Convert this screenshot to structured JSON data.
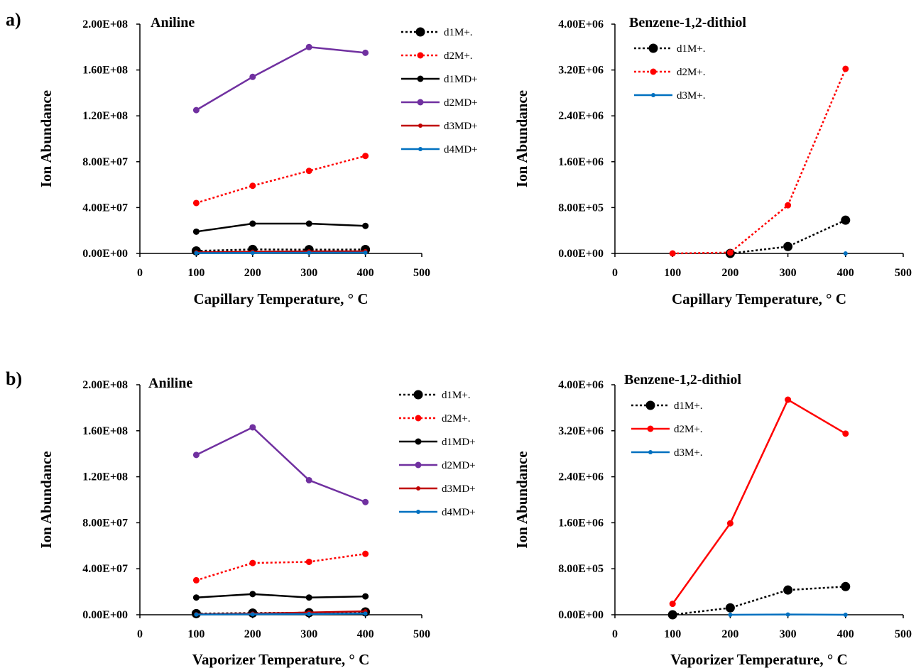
{
  "panel_labels": [
    "a)",
    "b)"
  ],
  "chart_data": [
    {
      "type": "line",
      "panel": "a)",
      "title": "Aniline",
      "xlabel": "Capillary Temperature, ° C",
      "ylabel": "Ion Abundance",
      "xlim": [
        0,
        500
      ],
      "xticks": [
        "0",
        "100",
        "200",
        "300",
        "400",
        "500"
      ],
      "ylim": [
        0,
        200000000
      ],
      "yticks": [
        "0.00E+00",
        "4.00E+07",
        "8.00E+07",
        "1.20E+08",
        "1.60E+08",
        "2.00E+08"
      ],
      "grid": false,
      "legend": "right",
      "x": [
        100,
        200,
        300,
        400
      ],
      "series": [
        {
          "name": "d1M+.",
          "values": [
            2200000,
            3500000,
            3300000,
            3400000
          ],
          "color": "#000000",
          "dashed": true,
          "marker": "large"
        },
        {
          "name": "d2M+.",
          "values": [
            44000000,
            59000000,
            72000000,
            85000000
          ],
          "color": "#ff0000",
          "dashed": true,
          "marker": "medium"
        },
        {
          "name": "d1MD+",
          "values": [
            19000000,
            26000000,
            26000000,
            24000000
          ],
          "color": "#000000",
          "dashed": false,
          "marker": "medium"
        },
        {
          "name": "d2MD+",
          "values": [
            125000000,
            154000000,
            180000000,
            175000000
          ],
          "color": "#7030a0",
          "dashed": false,
          "marker": "medium"
        },
        {
          "name": "d3MD+",
          "values": [
            1000000,
            1500000,
            1800000,
            1900000
          ],
          "color": "#c00000",
          "dashed": false,
          "marker": "small"
        },
        {
          "name": "d4MD+",
          "values": [
            300000,
            500000,
            600000,
            700000
          ],
          "color": "#0070c0",
          "dashed": false,
          "marker": "small"
        }
      ]
    },
    {
      "type": "line",
      "panel": "a)",
      "title": "Benzene-1,2-dithiol",
      "xlabel": "Capillary Temperature, ° C",
      "ylabel": "Ion Abundance",
      "xlim": [
        0,
        500
      ],
      "xticks": [
        "0",
        "100",
        "200",
        "300",
        "400",
        "500"
      ],
      "ylim": [
        0,
        4000000
      ],
      "yticks": [
        "0.00E+00",
        "8.00E+05",
        "1.60E+06",
        "2.40E+06",
        "3.20E+06",
        "4.00E+06"
      ],
      "grid": false,
      "legend": "top-left",
      "x": [
        100,
        200,
        300,
        400
      ],
      "series": [
        {
          "name": "d1M+.",
          "values": [
            null,
            0,
            120000,
            580000
          ],
          "color": "#000000",
          "dashed": true,
          "marker": "large"
        },
        {
          "name": "d2M+.",
          "values": [
            0,
            15000,
            840000,
            3220000
          ],
          "color": "#ff0000",
          "dashed": true,
          "marker": "medium"
        },
        {
          "name": "d3M+.",
          "values": [
            null,
            null,
            null,
            0
          ],
          "color": "#0070c0",
          "dashed": false,
          "marker": "small"
        }
      ]
    },
    {
      "type": "line",
      "panel": "b)",
      "title": "Aniline",
      "xlabel": "Vaporizer Temperature, ° C",
      "ylabel": "Ion Abundance",
      "xlim": [
        0,
        500
      ],
      "xticks": [
        "0",
        "100",
        "200",
        "300",
        "400",
        "500"
      ],
      "ylim": [
        0,
        200000000
      ],
      "yticks": [
        "0.00E+00",
        "4.00E+07",
        "8.00E+07",
        "1.20E+08",
        "1.60E+08",
        "2.00E+08"
      ],
      "grid": false,
      "legend": "right",
      "x": [
        100,
        200,
        300,
        400
      ],
      "series": [
        {
          "name": "d1M+.",
          "values": [
            1000000,
            1500000,
            1800000,
            2500000
          ],
          "color": "#000000",
          "dashed": true,
          "marker": "large"
        },
        {
          "name": "d2M+.",
          "values": [
            30000000,
            45000000,
            46000000,
            53000000
          ],
          "color": "#ff0000",
          "dashed": true,
          "marker": "medium"
        },
        {
          "name": "d1MD+",
          "values": [
            15000000,
            18000000,
            15000000,
            16000000
          ],
          "color": "#000000",
          "dashed": false,
          "marker": "medium"
        },
        {
          "name": "d2MD+",
          "values": [
            139000000,
            163000000,
            117000000,
            98000000
          ],
          "color": "#7030a0",
          "dashed": false,
          "marker": "medium"
        },
        {
          "name": "d3MD+",
          "values": [
            500000,
            1000000,
            2000000,
            3000000
          ],
          "color": "#c00000",
          "dashed": false,
          "marker": "small"
        },
        {
          "name": "d4MD+",
          "values": [
            200000,
            400000,
            600000,
            1000000
          ],
          "color": "#0070c0",
          "dashed": false,
          "marker": "small"
        }
      ]
    },
    {
      "type": "line",
      "panel": "b)",
      "title": "Benzene-1,2-dithiol",
      "xlabel": "Vaporizer Temperature, ° C",
      "ylabel": "Ion Abundance",
      "xlim": [
        0,
        500
      ],
      "xticks": [
        "0",
        "100",
        "200",
        "300",
        "400",
        "500"
      ],
      "ylim": [
        0,
        4000000
      ],
      "yticks": [
        "0.00E+00",
        "8.00E+05",
        "1.60E+06",
        "2.40E+06",
        "3.20E+06",
        "4.00E+06"
      ],
      "grid": false,
      "legend": "top-left",
      "x": [
        100,
        200,
        300,
        400
      ],
      "series": [
        {
          "name": "d1M+.",
          "values": [
            0,
            120000,
            430000,
            490000
          ],
          "color": "#000000",
          "dashed": true,
          "marker": "large"
        },
        {
          "name": "d2M+.",
          "values": [
            190000,
            1590000,
            3740000,
            3150000
          ],
          "color": "#ff0000",
          "dashed": false,
          "marker": "medium"
        },
        {
          "name": "d3M+.",
          "values": [
            null,
            0,
            5000,
            0
          ],
          "color": "#0070c0",
          "dashed": false,
          "marker": "small"
        }
      ]
    }
  ]
}
